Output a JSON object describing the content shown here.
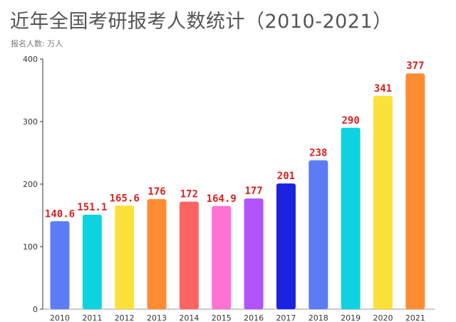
{
  "chart_data": {
    "type": "bar",
    "title": "近年全国考研报考人数统计（2010-2021）",
    "subtitle": "报名人数: 万人",
    "categories": [
      "2010",
      "2011",
      "2012",
      "2013",
      "2014",
      "2015",
      "2016",
      "2017",
      "2018",
      "2019",
      "2020",
      "2021"
    ],
    "values": [
      140.6,
      151.1,
      165.6,
      176,
      172,
      164.9,
      177,
      201,
      238,
      290,
      341,
      377
    ],
    "data_labels": [
      "140.6",
      "151.1",
      "165.6",
      "176",
      "172",
      "164.9",
      "177",
      "201",
      "238",
      "290",
      "341",
      "377"
    ],
    "bar_colors": [
      "#5b7cf5",
      "#0fd2e0",
      "#fde13a",
      "#fe8c33",
      "#fe6363",
      "#fe72d4",
      "#b452fb",
      "#1b22e0",
      "#5b7cf5",
      "#0fd2e0",
      "#fde13a",
      "#fe8c33"
    ],
    "label_color": "#d9211f",
    "ylim": [
      0,
      400
    ],
    "yticks": [
      0,
      100,
      200,
      300,
      400
    ],
    "grid": false
  }
}
